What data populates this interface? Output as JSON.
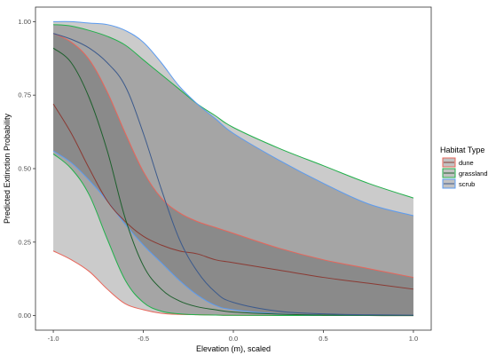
{
  "chart_data": {
    "type": "line",
    "title": "",
    "xlabel": "Elevation (m), scaled",
    "ylabel": "Predicted Extinction Probability",
    "xlim": [
      -1.0,
      1.0
    ],
    "ylim": [
      0.0,
      1.0
    ],
    "x_ticks": [
      "-1.0",
      "-0.5",
      "0.0",
      "0.5",
      "1.0"
    ],
    "y_ticks": [
      "0.00",
      "0.25",
      "0.50",
      "0.75",
      "1.00"
    ],
    "grid": false,
    "legend": {
      "title": "Habitat Type",
      "position": "right"
    },
    "series": [
      {
        "name": "dune",
        "color": "#e8655a",
        "x": [
          -1.0,
          -0.9,
          -0.8,
          -0.7,
          -0.6,
          -0.5,
          -0.4,
          -0.3,
          -0.2,
          -0.1,
          0.0,
          0.25,
          0.5,
          0.75,
          1.0
        ],
        "mean": [
          0.72,
          0.62,
          0.5,
          0.39,
          0.32,
          0.27,
          0.24,
          0.22,
          0.21,
          0.19,
          0.18,
          0.155,
          0.13,
          0.11,
          0.09
        ],
        "lower": [
          0.22,
          0.19,
          0.15,
          0.09,
          0.04,
          0.02,
          0.008,
          0.004,
          0.003,
          0.002,
          0.001,
          0.0005,
          0.0003,
          0.0002,
          0.0001
        ],
        "upper": [
          0.96,
          0.93,
          0.87,
          0.76,
          0.62,
          0.49,
          0.4,
          0.35,
          0.32,
          0.3,
          0.28,
          0.23,
          0.19,
          0.16,
          0.13
        ]
      },
      {
        "name": "grassland",
        "color": "#22b04b",
        "x": [
          -1.0,
          -0.9,
          -0.8,
          -0.7,
          -0.6,
          -0.5,
          -0.4,
          -0.3,
          -0.2,
          -0.1,
          0.0,
          0.25,
          0.5,
          0.75,
          1.0
        ],
        "mean": [
          0.91,
          0.86,
          0.74,
          0.56,
          0.33,
          0.17,
          0.09,
          0.05,
          0.03,
          0.02,
          0.012,
          0.005,
          0.002,
          0.001,
          0.0005
        ],
        "lower": [
          0.55,
          0.5,
          0.41,
          0.26,
          0.12,
          0.045,
          0.015,
          0.006,
          0.003,
          0.002,
          0.001,
          0.0005,
          0.0003,
          0.0002,
          0.0001
        ],
        "upper": [
          0.99,
          0.985,
          0.97,
          0.95,
          0.92,
          0.87,
          0.82,
          0.77,
          0.72,
          0.68,
          0.64,
          0.57,
          0.51,
          0.45,
          0.4
        ]
      },
      {
        "name": "scrub",
        "color": "#5b9bf0",
        "x": [
          -1.0,
          -0.9,
          -0.8,
          -0.7,
          -0.6,
          -0.5,
          -0.4,
          -0.3,
          -0.2,
          -0.1,
          0.0,
          0.25,
          0.5,
          0.75,
          1.0
        ],
        "mean": [
          0.96,
          0.94,
          0.91,
          0.86,
          0.78,
          0.62,
          0.43,
          0.26,
          0.15,
          0.08,
          0.045,
          0.015,
          0.006,
          0.003,
          0.0015
        ],
        "lower": [
          0.56,
          0.52,
          0.46,
          0.39,
          0.31,
          0.24,
          0.18,
          0.12,
          0.07,
          0.035,
          0.02,
          0.006,
          0.002,
          0.001,
          0.0005
        ],
        "upper": [
          1.0,
          1.0,
          0.995,
          0.99,
          0.97,
          0.93,
          0.86,
          0.78,
          0.72,
          0.67,
          0.62,
          0.53,
          0.45,
          0.38,
          0.34
        ]
      }
    ]
  }
}
